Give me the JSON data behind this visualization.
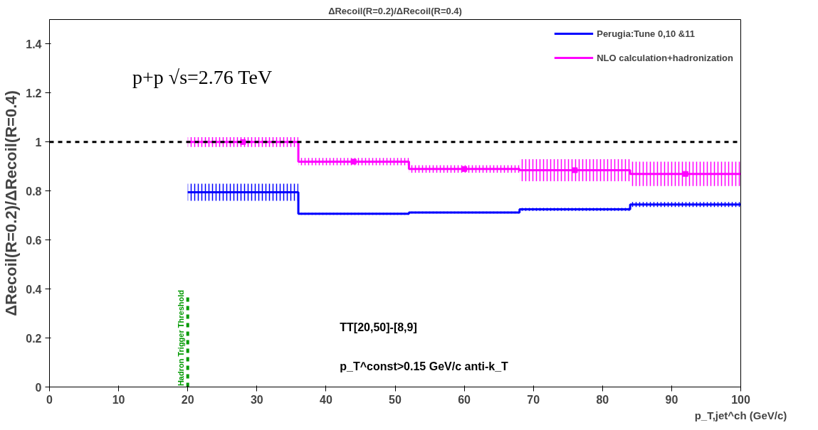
{
  "chart_data": {
    "type": "step",
    "title": "ΔRecoil(R=0.2)/ΔRecoil(R=0.4)",
    "xlabel": "p_T,jet^ch (GeV/c)",
    "ylabel": "ΔRecoil(R=0.2)/ΔRecoil(R=0.4)",
    "x": [
      20,
      36,
      52,
      68,
      84,
      100
    ],
    "series": [
      {
        "name": "Perugia:Tune 0,10 &11",
        "color": "#0000ff",
        "values": [
          0.795,
          0.707,
          0.712,
          0.725,
          0.745,
          0.745
        ],
        "lower": [
          0.76,
          0.703,
          0.709,
          0.719,
          0.735,
          0.735
        ],
        "upper": [
          0.83,
          0.711,
          0.716,
          0.731,
          0.755,
          0.755
        ]
      },
      {
        "name": "NLO calculation+hadronization",
        "color": "#ff00ff",
        "values": [
          1.0,
          0.92,
          0.89,
          0.885,
          0.87,
          0.87
        ],
        "lower": [
          0.98,
          0.905,
          0.875,
          0.84,
          0.82,
          0.82
        ],
        "upper": [
          1.02,
          0.935,
          0.905,
          0.93,
          0.92,
          0.92
        ]
      },
      {
        "type": "scatter",
        "color": "#ff00ff",
        "marker": "square",
        "x": [
          28,
          44,
          60,
          76,
          92
        ],
        "values": [
          1.0,
          0.92,
          0.89,
          0.885,
          0.87
        ]
      },
      {
        "type": "line",
        "color": "#009900",
        "line_style": "dashed",
        "x": [
          20,
          20
        ],
        "values": [
          0,
          0.38
        ]
      }
    ],
    "ref_lines": [
      {
        "axis": "y",
        "value": 1,
        "color": "#000000",
        "line_style": "dashed"
      }
    ],
    "annotations": [
      {
        "text": "Hadron Trigger Threshold",
        "x": 20,
        "y": 0.2
      },
      "p+p √s=2.76 TeV",
      "TT[20,50]-[8,9]",
      "p_T^const>0.15 GeV/c anti-k_T"
    ],
    "xlim": [
      0,
      100
    ],
    "xticks": [
      0,
      10,
      20,
      30,
      40,
      50,
      60,
      70,
      80,
      90,
      100
    ],
    "ylim": [
      0,
      1.5
    ],
    "yticks": [
      0,
      0.2,
      0.4,
      0.6,
      0.8,
      1,
      1.2,
      1.4
    ],
    "legend": "top right"
  }
}
